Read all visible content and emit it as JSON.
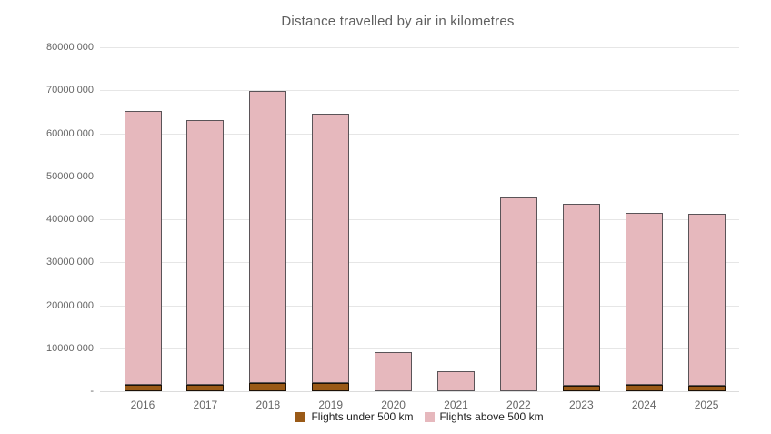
{
  "title": "Distance travelled by air in kilometres",
  "colors": {
    "background": "#FFFFFF",
    "under_fill": "#9A5A17",
    "under_border": "#1D1106",
    "above_fill": "#E6B8BD",
    "above_border": "#5A5458",
    "gridline": "#E6E6E6",
    "title_text": "#5F5F5F",
    "axis_text": "#666666",
    "legend_text": "#212121"
  },
  "y_axis": {
    "tick_labels": [
      "80000 000",
      "70000 000",
      "60000 000",
      "50000 000",
      "40000 000",
      "30000 000",
      "20000 000",
      "10000 000",
      "-"
    ],
    "min": 0,
    "max": 80000000,
    "step": 10000000
  },
  "chart_data": {
    "type": "bar",
    "stacked": true,
    "title": "Distance travelled by air in kilometres",
    "categories": [
      "2016",
      "2017",
      "2018",
      "2019",
      "2020",
      "2021",
      "2022",
      "2023",
      "2024",
      "2025"
    ],
    "series": [
      {
        "name": "Flights under 500 km",
        "color": "#9A5A17",
        "values": [
          1400000,
          1400000,
          1900000,
          1900000,
          0,
          0,
          0,
          1300000,
          1500000,
          1300000
        ]
      },
      {
        "name": "Flights above 500 km",
        "color": "#E6B8BD",
        "values": [
          63800000,
          61700000,
          68000000,
          62700000,
          9100000,
          4700000,
          45000000,
          42300000,
          39900000,
          40000000
        ]
      }
    ],
    "totals": [
      65200000,
      63100000,
      69900000,
      64600000,
      9100000,
      4700000,
      45000000,
      43600000,
      41400000,
      41300000
    ],
    "xlabel": "",
    "ylabel": "",
    "ylim": [
      0,
      80000000
    ],
    "grid": true,
    "legend_position": "bottom"
  }
}
